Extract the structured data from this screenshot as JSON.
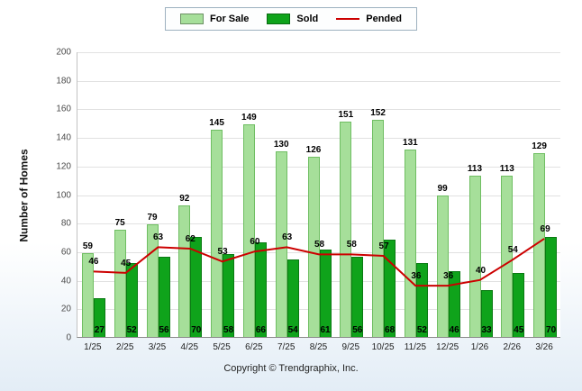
{
  "legend": {
    "for_sale": "For Sale",
    "sold": "Sold",
    "pended": "Pended"
  },
  "y_axis_title": "Number of Homes",
  "footer": "Copyright © Trendgraphix, Inc.",
  "colors": {
    "for_sale": "#A6DF9A",
    "for_sale_border": "#6FBE62",
    "sold": "#0FA31B",
    "sold_border": "#0A7A13",
    "pended": "#CC0000"
  },
  "chart_data": {
    "type": "bar+line",
    "title": "",
    "xlabel": "",
    "ylabel": "Number of Homes",
    "ylim": [
      0,
      200
    ],
    "ytick_step": 20,
    "grid": true,
    "legend_position": "top-center",
    "categories": [
      "1/25",
      "2/25",
      "3/25",
      "4/25",
      "5/25",
      "6/25",
      "7/25",
      "8/25",
      "9/25",
      "10/25",
      "11/25",
      "12/25",
      "1/26",
      "2/26",
      "3/26"
    ],
    "series": [
      {
        "name": "For Sale",
        "type": "bar",
        "values": [
          59,
          75,
          79,
          92,
          145,
          149,
          130,
          126,
          151,
          152,
          131,
          99,
          113,
          113,
          129
        ]
      },
      {
        "name": "Sold",
        "type": "bar",
        "values": [
          27,
          52,
          56,
          70,
          58,
          66,
          54,
          61,
          56,
          68,
          52,
          46,
          33,
          45,
          70
        ]
      },
      {
        "name": "Pended",
        "type": "line",
        "values": [
          46,
          45,
          63,
          62,
          53,
          60,
          63,
          58,
          58,
          57,
          36,
          36,
          40,
          54,
          69
        ]
      }
    ]
  }
}
